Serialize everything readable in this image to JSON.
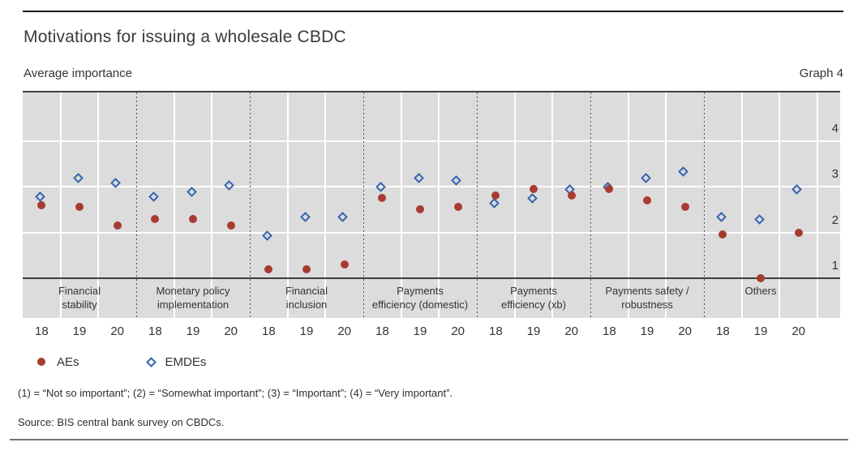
{
  "header": {
    "title": "Motivations for issuing a wholesale CBDC",
    "subtitle": "Average importance",
    "graph_label": "Graph 4"
  },
  "chart_data": {
    "type": "scatter",
    "title": "Motivations for issuing a wholesale CBDC",
    "subtitle": "Average importance",
    "grid": true,
    "ylim": [
      1,
      4
    ],
    "yticks": [
      "1",
      "2",
      "3",
      "4"
    ],
    "legend_position": "bottom-left",
    "years": [
      "18",
      "19",
      "20"
    ],
    "categories": [
      {
        "lines": [
          "Financial",
          "stability"
        ]
      },
      {
        "lines": [
          "Monetary policy",
          "implementation"
        ]
      },
      {
        "lines": [
          "Financial",
          "inclusion"
        ]
      },
      {
        "lines": [
          "Payments",
          "efficiency (domestic)"
        ]
      },
      {
        "lines": [
          "Payments",
          "efficiency (xb)"
        ]
      },
      {
        "lines": [
          "Payments safety /",
          "robustness"
        ]
      },
      {
        "lines": [
          "Others"
        ]
      }
    ],
    "series": [
      {
        "name": "EMDEs",
        "marker": "open-diamond",
        "color": "#3565b0",
        "values": [
          [
            2.75,
            3.15,
            3.05
          ],
          [
            2.75,
            2.85,
            3.0
          ],
          [
            1.9,
            2.3,
            2.3
          ],
          [
            2.95,
            3.15,
            3.1
          ],
          [
            2.6,
            2.7,
            2.9
          ],
          [
            2.95,
            3.15,
            3.3
          ],
          [
            2.3,
            2.25,
            2.9
          ]
        ]
      },
      {
        "name": "AEs",
        "marker": "filled-circle",
        "color": "#a73b32",
        "values": [
          [
            2.6,
            2.55,
            2.15
          ],
          [
            2.3,
            2.3,
            2.15
          ],
          [
            1.2,
            1.2,
            1.3
          ],
          [
            2.75,
            2.5,
            2.55
          ],
          [
            2.8,
            2.95,
            2.8
          ],
          [
            2.95,
            2.7,
            2.55
          ],
          [
            1.95,
            1.0,
            2.0
          ]
        ]
      }
    ]
  },
  "legend": {
    "items": [
      {
        "label": "AEs"
      },
      {
        "label": "EMDEs"
      }
    ]
  },
  "footnotes": {
    "scale": "(1) = “Not so important”; (2) = “Somewhat important”; (3) = “Important”; (4) = “Very important”.",
    "source": "Source: BIS central bank survey on CBDCs."
  }
}
